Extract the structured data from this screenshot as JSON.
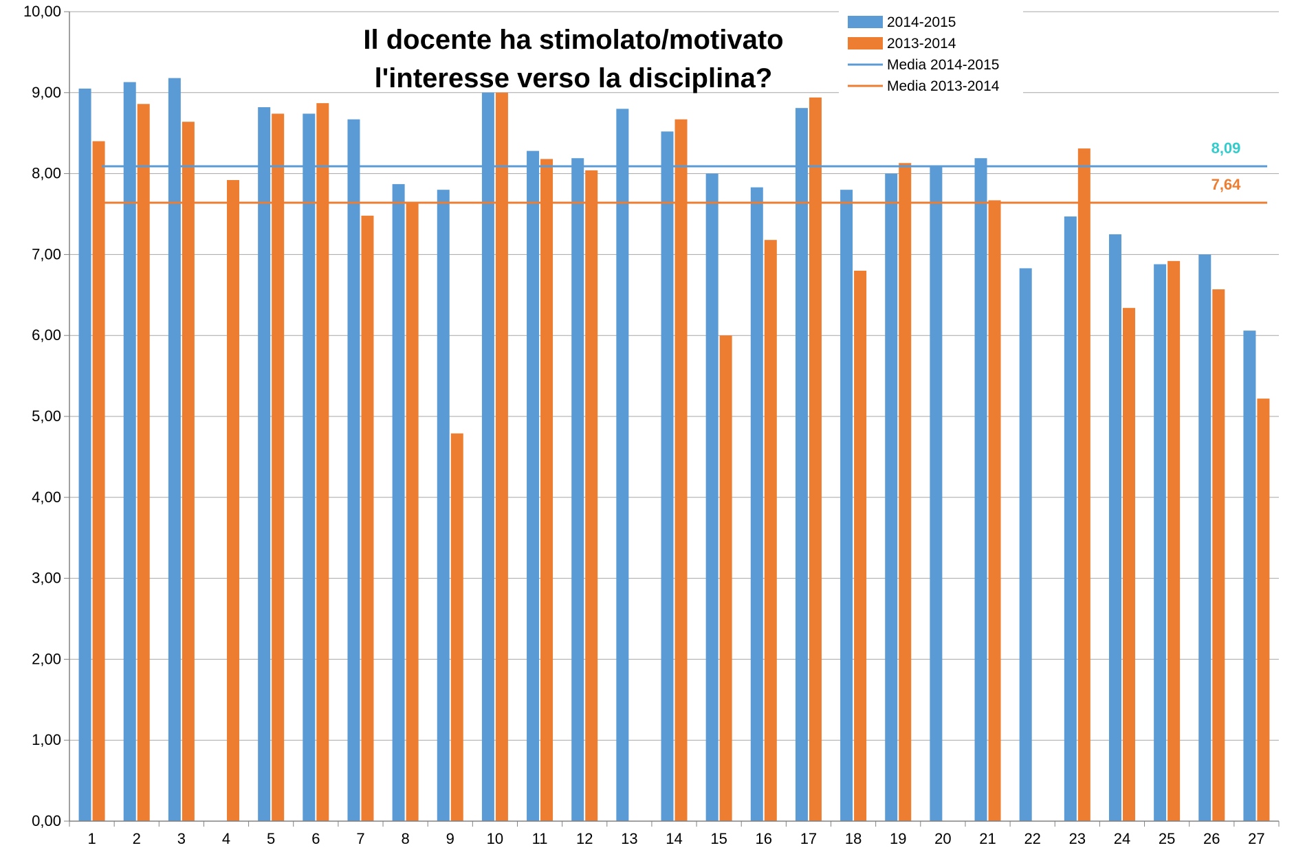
{
  "chart_data": {
    "type": "bar",
    "title": [
      "Il docente ha stimolato/motivato",
      "l'interesse verso la disciplina?"
    ],
    "categories": [
      "1",
      "2",
      "3",
      "4",
      "5",
      "6",
      "7",
      "8",
      "9",
      "10",
      "11",
      "12",
      "13",
      "14",
      "15",
      "16",
      "17",
      "18",
      "19",
      "20",
      "21",
      "22",
      "23",
      "24",
      "25",
      "26",
      "27"
    ],
    "series": [
      {
        "name": "2014-2015",
        "color": "#5B9BD5",
        "values": [
          9.05,
          9.13,
          9.18,
          null,
          8.82,
          8.74,
          8.67,
          7.87,
          7.8,
          9.0,
          8.28,
          8.19,
          8.8,
          8.52,
          8.0,
          7.83,
          8.81,
          7.8,
          8.0,
          8.09,
          8.19,
          6.83,
          7.47,
          7.25,
          6.88,
          7.0,
          6.06
        ]
      },
      {
        "name": "2013-2014",
        "color": "#ED7D31",
        "values": [
          8.4,
          8.86,
          8.64,
          7.92,
          8.74,
          8.87,
          7.48,
          7.64,
          4.79,
          9.0,
          8.18,
          8.04,
          null,
          8.67,
          6.0,
          7.18,
          8.94,
          6.8,
          8.13,
          null,
          7.67,
          null,
          8.31,
          6.34,
          6.92,
          6.57,
          5.22
        ]
      }
    ],
    "lines": [
      {
        "name": "Media 2014-2015",
        "value": 8.09,
        "label": "8,09",
        "color": "#5B9BD5",
        "label_color": "#33CCCC"
      },
      {
        "name": "Media 2013-2014",
        "value": 7.64,
        "label": "7,64",
        "color": "#ED7D31",
        "label_color": "#ED7D31"
      }
    ],
    "ylim": [
      0,
      10
    ],
    "yticks": [
      "0,00",
      "1,00",
      "2,00",
      "3,00",
      "4,00",
      "5,00",
      "6,00",
      "7,00",
      "8,00",
      "9,00",
      "10,00"
    ],
    "grid": true,
    "legend_position": "top-right"
  }
}
